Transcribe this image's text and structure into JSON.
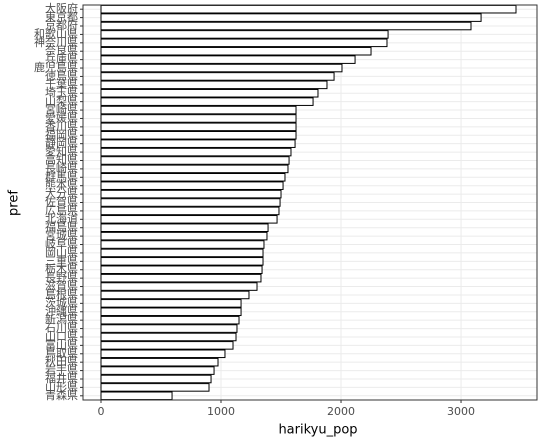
{
  "chart_data": {
    "type": "barh",
    "xlabel": "harikyu_pop",
    "ylabel": "pref",
    "categories": [
      "大阪府",
      "東京都",
      "京都府",
      "和歌山県",
      "神奈川県",
      "奈良県",
      "兵庫県",
      "鹿児島県",
      "徳島県",
      "千葉県",
      "埼玉県",
      "山梨県",
      "宮崎県",
      "愛媛県",
      "香川県",
      "福岡県",
      "静岡県",
      "愛知県",
      "高知県",
      "長崎県",
      "群馬県",
      "熊本県",
      "大分県",
      "佐賀県",
      "広島県",
      "北海道",
      "福島県",
      "宮城県",
      "岐阜県",
      "岡山県",
      "三重県",
      "栃木県",
      "長野県",
      "滋賀県",
      "島根県",
      "茨城県",
      "沖縄県",
      "新潟県",
      "石川県",
      "山口県",
      "富山県",
      "鳥取県",
      "秋田県",
      "岩手県",
      "福井県",
      "山形県",
      "青森県"
    ],
    "values": [
      3458,
      3167,
      3083,
      2392,
      2383,
      2250,
      2117,
      2008,
      1942,
      1883,
      1808,
      1767,
      1625,
      1625,
      1625,
      1625,
      1617,
      1583,
      1567,
      1558,
      1533,
      1517,
      1500,
      1492,
      1483,
      1467,
      1392,
      1383,
      1358,
      1350,
      1350,
      1342,
      1333,
      1300,
      1233,
      1167,
      1167,
      1150,
      1133,
      1125,
      1100,
      1033,
      975,
      942,
      917,
      900,
      592
    ],
    "color": "#ffffff",
    "edgecolor": "#000000",
    "xlim": [
      -150,
      3633
    ],
    "xticks": [
      0,
      1000,
      2000,
      3000
    ],
    "grid": true
  }
}
